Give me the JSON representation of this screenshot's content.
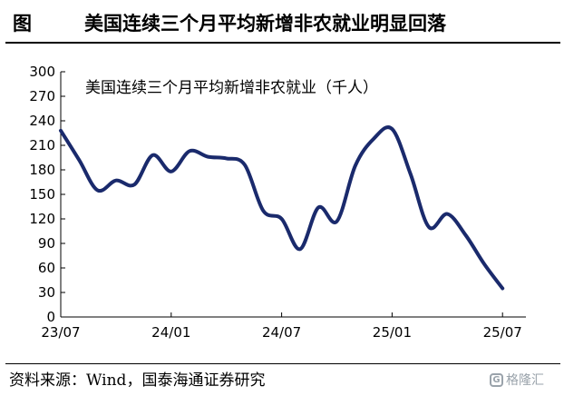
{
  "header": {
    "figure_label": "图",
    "title": "美国连续三个月平均新增非农就业明显回落"
  },
  "chart_data": {
    "type": "line",
    "title": "美国连续三个月平均新增非农就业（千人）",
    "xlabel": "",
    "ylabel": "",
    "ylim": [
      0,
      300
    ],
    "y_ticks": [
      0,
      30,
      60,
      90,
      120,
      150,
      180,
      210,
      240,
      270,
      300
    ],
    "x_tick_labels": [
      "23/07",
      "24/01",
      "24/07",
      "25/01",
      "25/07"
    ],
    "grid": false,
    "line_color": "#1a2a6c",
    "series": [
      {
        "x": [
          "2023-07",
          "2023-08",
          "2023-09",
          "2023-10",
          "2023-11",
          "2023-12",
          "2024-01",
          "2024-02",
          "2024-03",
          "2024-04",
          "2024-05",
          "2024-06",
          "2024-07",
          "2024-08",
          "2024-09",
          "2024-10",
          "2024-11",
          "2024-12",
          "2025-01",
          "2025-02",
          "2025-03",
          "2025-04",
          "2025-05",
          "2025-06",
          "2025-07"
        ],
        "values": [
          228,
          192,
          155,
          167,
          162,
          198,
          178,
          203,
          196,
          194,
          186,
          130,
          120,
          83,
          134,
          117,
          185,
          218,
          230,
          175,
          110,
          126,
          100,
          65,
          35
        ]
      }
    ]
  },
  "footer": {
    "source": "资料来源：Wind，国泰海通证券研究",
    "watermark": "格隆汇"
  }
}
